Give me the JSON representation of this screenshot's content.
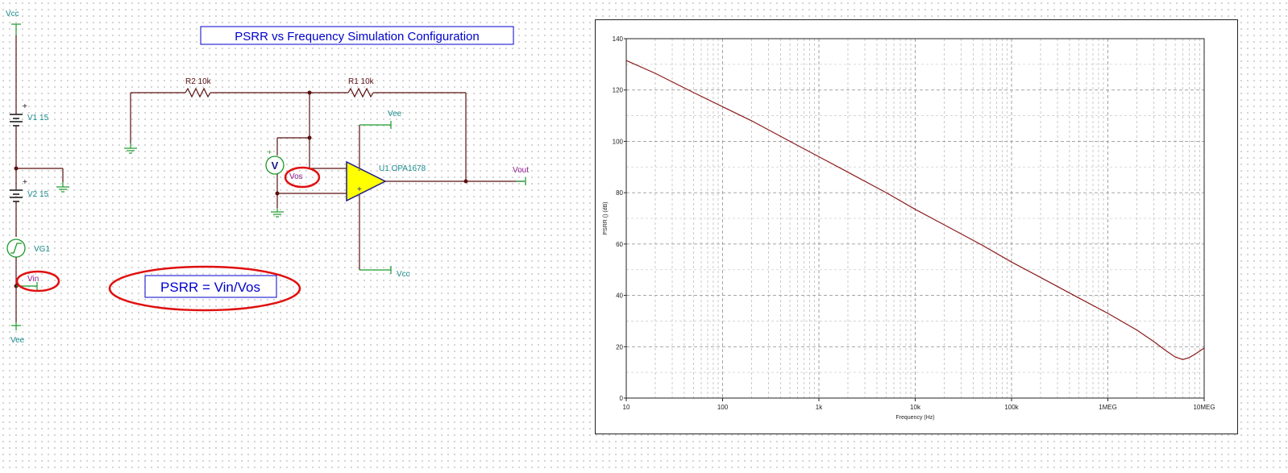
{
  "schematic": {
    "title": "PSRR vs Frequency Simulation Configuration",
    "formula": "PSRR = Vin/Vos",
    "labels": {
      "vcc_top": "Vcc",
      "vee_bottom": "Vee",
      "v1": "V1 15",
      "v2": "V2 15",
      "vg1": "VG1",
      "vin": "Vin",
      "r2": "R2 10k",
      "r1": "R1 10k",
      "vee_opamp": "Vee",
      "vcc_opamp": "Vcc",
      "u1": "U1 OPA1678",
      "vos": "Vos",
      "vout": "Vout",
      "voltmeter": "V",
      "plus": "+",
      "minus": "-"
    },
    "colors": {
      "wire": "#5a1010",
      "label": "#1a8a8a",
      "probe": "#8b1a8b",
      "highlight": "#e01010",
      "opamp_fill": "#ffff00",
      "opamp_outline": "#1a1a8a"
    }
  },
  "chart_data": {
    "type": "line",
    "title": "",
    "xlabel": "Frequency (Hz)",
    "ylabel": "PSRR () (dB)",
    "xscale": "log",
    "xlim": [
      10,
      10000000
    ],
    "ylim": [
      0,
      140
    ],
    "grid": true,
    "x_ticks": [
      10,
      100,
      1000,
      10000,
      100000,
      1000000,
      10000000
    ],
    "x_tick_labels": [
      "10",
      "100",
      "1k",
      "10k",
      "100k",
      "1MEG",
      "10MEG"
    ],
    "y_ticks": [
      0,
      20,
      40,
      60,
      80,
      100,
      120,
      140
    ],
    "y_tick_labels": [
      "0",
      "20",
      "40",
      "60",
      "80",
      "100",
      "120",
      "140"
    ],
    "line_color": "#8b1a1a",
    "series": [
      {
        "name": "",
        "x": [
          10,
          20,
          50,
          100,
          200,
          500,
          1000,
          2000,
          5000,
          10000,
          20000,
          50000,
          100000,
          200000,
          500000,
          1000000,
          2000000,
          3000000,
          4000000,
          5000000,
          6000000,
          7000000,
          8000000,
          10000000
        ],
        "y": [
          131.5,
          126.5,
          119,
          113.5,
          108,
          100,
          94,
          88,
          80,
          73.5,
          67.5,
          59.5,
          53,
          47,
          39,
          33,
          26.5,
          22,
          18.5,
          16,
          15,
          15.8,
          17,
          19.5
        ]
      }
    ]
  }
}
